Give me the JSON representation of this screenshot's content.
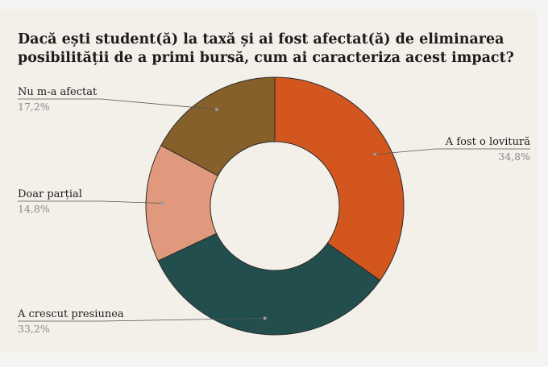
{
  "title": "Dacă ești student(ă) la taxă și ai fost afectat(ă) de eliminarea posibilității de a primi bursă, cum ai caracteriza acest impact?",
  "chart_data": {
    "type": "pie",
    "donut": true,
    "title": "Dacă ești student(ă) la taxă și ai fost afectat(ă) de eliminarea posibilității de a primi bursă, cum ai caracteriza acest impact?",
    "slices": [
      {
        "label": "A fost o lovitură",
        "value": 34.8,
        "display": "34,8%",
        "color": "#d4561f",
        "side": "right"
      },
      {
        "label": "A crescut presiunea",
        "value": 33.2,
        "display": "33,2%",
        "color": "#234e4e",
        "side": "left"
      },
      {
        "label": "Doar parțial",
        "value": 14.8,
        "display": "14,8%",
        "color": "#e0997c",
        "side": "left"
      },
      {
        "label": "Nu m-a afectat",
        "value": 17.2,
        "display": "17,2%",
        "color": "#86602a",
        "side": "left"
      }
    ],
    "legend": "none"
  }
}
